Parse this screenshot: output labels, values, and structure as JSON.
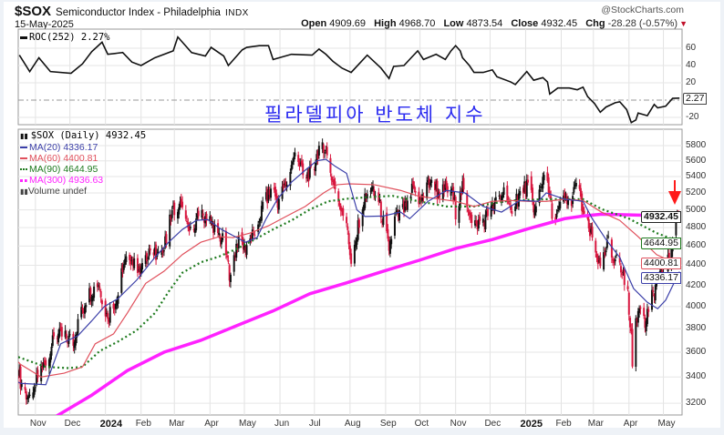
{
  "header": {
    "symbol": "$SOX",
    "name": "Semiconductor Index - Philadelphia",
    "exchange": "INDX",
    "date": "15-May-2025",
    "copyright": "@StockCharts.com",
    "open_label": "Open",
    "open": "4909.69",
    "high_label": "High",
    "high": "4968.70",
    "low_label": "Low",
    "low": "4873.54",
    "close_label": "Close",
    "close": "4932.45",
    "chg_label": "Chg",
    "chg": "-28.28 (-0.57%)",
    "chg_arrow": "▼"
  },
  "annotation": {
    "korean_title": "필라델피아 반도체 지수",
    "arrow_color": "#ff1a1a"
  },
  "colors": {
    "up": "#111111",
    "down": "#d8173f",
    "ma20": "#3b3fa8",
    "ma60": "#e0505c",
    "ma90": "#1e7a1e",
    "ma300": "#ff22ff",
    "roc": "#111111"
  },
  "chart_data": [
    {
      "type": "line",
      "title": "ROC(252)",
      "legend": {
        "label": "ROC(252) 2.27%",
        "placement": "top-left"
      },
      "last_value": "2.27",
      "x_unit": "days since start_date",
      "start_date": "2023-10-17",
      "y_ticks": [
        "60",
        "40",
        "20",
        "-20"
      ],
      "y_tick_values": [
        60,
        40,
        20,
        -20
      ],
      "ylim": [
        -28,
        80
      ],
      "zero_line": true,
      "points": [
        [
          1,
          52
        ],
        [
          10,
          33
        ],
        [
          18,
          49
        ],
        [
          28,
          33
        ],
        [
          46,
          31
        ],
        [
          56,
          42
        ],
        [
          64,
          56
        ],
        [
          73,
          67
        ],
        [
          78,
          53
        ],
        [
          91,
          55
        ],
        [
          99,
          44
        ],
        [
          107,
          40
        ],
        [
          119,
          49
        ],
        [
          135,
          57
        ],
        [
          139,
          73
        ],
        [
          151,
          55
        ],
        [
          163,
          51
        ],
        [
          168,
          61
        ],
        [
          179,
          51
        ],
        [
          183,
          40
        ],
        [
          195,
          58
        ],
        [
          199,
          61
        ],
        [
          210,
          63
        ],
        [
          218,
          63
        ],
        [
          222,
          47
        ],
        [
          238,
          53
        ],
        [
          256,
          52
        ],
        [
          262,
          59
        ],
        [
          268,
          53
        ],
        [
          274,
          45
        ],
        [
          282,
          37
        ],
        [
          290,
          32
        ],
        [
          304,
          52
        ],
        [
          316,
          37
        ],
        [
          323,
          25
        ],
        [
          327,
          39
        ],
        [
          336,
          40
        ],
        [
          343,
          50
        ],
        [
          348,
          57
        ],
        [
          353,
          47
        ],
        [
          364,
          53
        ],
        [
          372,
          47
        ],
        [
          377,
          57
        ],
        [
          381,
          63
        ],
        [
          385,
          57
        ],
        [
          387,
          49
        ],
        [
          393,
          40
        ],
        [
          397,
          32
        ],
        [
          405,
          32
        ],
        [
          413,
          35
        ],
        [
          417,
          27
        ],
        [
          429,
          21
        ],
        [
          433,
          18
        ],
        [
          443,
          33
        ],
        [
          449,
          23
        ],
        [
          457,
          26
        ],
        [
          461,
          21
        ],
        [
          463,
          7
        ],
        [
          470,
          14
        ],
        [
          480,
          14
        ],
        [
          487,
          12
        ],
        [
          492,
          15
        ],
        [
          496,
          4
        ],
        [
          502,
          -4
        ],
        [
          507,
          -14
        ],
        [
          512,
          -8
        ],
        [
          520,
          -3
        ],
        [
          524,
          -2
        ],
        [
          530,
          -11
        ],
        [
          534,
          -26
        ],
        [
          538,
          -23
        ],
        [
          540,
          -15
        ],
        [
          548,
          -18
        ],
        [
          554,
          -5
        ],
        [
          557,
          -9
        ],
        [
          564,
          -7
        ],
        [
          570,
          2
        ],
        [
          576,
          2.27
        ]
      ]
    },
    {
      "type": "candlestick",
      "title": "$SOX (Daily)",
      "legend": [
        {
          "key": "price",
          "label": "$SOX (Daily) 4932.45"
        },
        {
          "key": "ma20",
          "label": "MA(20) 4336.17"
        },
        {
          "key": "ma60",
          "label": "MA(60) 4400.81"
        },
        {
          "key": "ma90",
          "label": "MA(90) 4644.95"
        },
        {
          "key": "ma300",
          "label": "MA(300) 4936.63"
        },
        {
          "key": "volume",
          "label": "Volume undef"
        }
      ],
      "last_values": {
        "price": "4932.45",
        "ma90": "4644.95",
        "ma60": "4400.81",
        "ma20": "4336.17"
      },
      "scale": "log",
      "ylim": [
        3080,
        6050
      ],
      "y_ticks": [
        "5800",
        "5600",
        "5400",
        "5200",
        "5000",
        "4800",
        "4600",
        "4400",
        "4200",
        "4000",
        "3800",
        "3600",
        "3400",
        "3200"
      ],
      "y_tick_values": [
        5800,
        5600,
        5400,
        5200,
        5000,
        4800,
        4600,
        4400,
        4200,
        4000,
        3800,
        3600,
        3400,
        3200
      ],
      "x_unit": "days since start_date",
      "start_date": "2023-10-17",
      "end_day": 576,
      "x_ticks": [
        {
          "date": "2023-11-01",
          "label": "Nov"
        },
        {
          "date": "2023-12-01",
          "label": "Dec"
        },
        {
          "date": "2024-01-01",
          "label": "2024",
          "year": true
        },
        {
          "date": "2024-02-01",
          "label": "Feb"
        },
        {
          "date": "2024-03-01",
          "label": "Mar"
        },
        {
          "date": "2024-04-01",
          "label": "Apr"
        },
        {
          "date": "2024-05-01",
          "label": "May"
        },
        {
          "date": "2024-06-01",
          "label": "Jun"
        },
        {
          "date": "2024-07-01",
          "label": "Jul"
        },
        {
          "date": "2024-08-01",
          "label": "Aug"
        },
        {
          "date": "2024-09-01",
          "label": "Sep"
        },
        {
          "date": "2024-10-01",
          "label": "Oct"
        },
        {
          "date": "2024-11-01",
          "label": "Nov"
        },
        {
          "date": "2024-12-01",
          "label": "Dec"
        },
        {
          "date": "2025-01-01",
          "label": "2025",
          "year": true
        },
        {
          "date": "2025-02-01",
          "label": "Feb"
        },
        {
          "date": "2025-03-01",
          "label": "Mar"
        },
        {
          "date": "2025-04-01",
          "label": "Apr"
        },
        {
          "date": "2025-05-01",
          "label": "May"
        }
      ],
      "close_path": [
        [
          0,
          3450
        ],
        [
          2,
          3360
        ],
        [
          12,
          3173
        ],
        [
          16,
          3380
        ],
        [
          25,
          3556
        ],
        [
          33,
          3755
        ],
        [
          48,
          3700
        ],
        [
          54,
          3915
        ],
        [
          61,
          4118
        ],
        [
          70,
          4220
        ],
        [
          77,
          3915
        ],
        [
          86,
          4060
        ],
        [
          91,
          4387
        ],
        [
          97,
          4508
        ],
        [
          105,
          4297
        ],
        [
          114,
          4574
        ],
        [
          123,
          4450
        ],
        [
          129,
          4670
        ],
        [
          133,
          4975
        ],
        [
          141,
          5050
        ],
        [
          147,
          4800
        ],
        [
          152,
          4700
        ],
        [
          157,
          4925
        ],
        [
          165,
          4930
        ],
        [
          171,
          4800
        ],
        [
          179,
          4640
        ],
        [
          184,
          4322
        ],
        [
          192,
          4700
        ],
        [
          197,
          4574
        ],
        [
          208,
          4800
        ],
        [
          213,
          5040
        ],
        [
          221,
          5255
        ],
        [
          226,
          5100
        ],
        [
          234,
          5330
        ],
        [
          242,
          5715
        ],
        [
          248,
          5411
        ],
        [
          256,
          5440
        ],
        [
          264,
          5890
        ],
        [
          268,
          5715
        ],
        [
          272,
          5440
        ],
        [
          276,
          5255
        ],
        [
          280,
          5100
        ],
        [
          287,
          4800
        ],
        [
          290,
          4387
        ],
        [
          294,
          4640
        ],
        [
          299,
          5040
        ],
        [
          307,
          5255
        ],
        [
          315,
          5040
        ],
        [
          323,
          4574
        ],
        [
          328,
          4900
        ],
        [
          339,
          5040
        ],
        [
          344,
          5300
        ],
        [
          349,
          5040
        ],
        [
          361,
          5411
        ],
        [
          365,
          5200
        ],
        [
          377,
          5255
        ],
        [
          381,
          4975
        ],
        [
          387,
          5255
        ],
        [
          397,
          4820
        ],
        [
          407,
          4900
        ],
        [
          423,
          5225
        ],
        [
          430,
          4900
        ],
        [
          434,
          5146
        ],
        [
          445,
          5330
        ],
        [
          450,
          4975
        ],
        [
          458,
          5440
        ],
        [
          463,
          5146
        ],
        [
          466,
          4820
        ],
        [
          474,
          5100
        ],
        [
          482,
          5130
        ],
        [
          487,
          5300
        ],
        [
          492,
          4975
        ],
        [
          498,
          4740
        ],
        [
          503,
          4574
        ],
        [
          507,
          4340
        ],
        [
          514,
          4640
        ],
        [
          518,
          4508
        ],
        [
          524,
          4387
        ],
        [
          530,
          4220
        ],
        [
          534,
          3755
        ],
        [
          535,
          3425
        ],
        [
          538,
          3915
        ],
        [
          542,
          4040
        ],
        [
          546,
          3830
        ],
        [
          550,
          4040
        ],
        [
          556,
          4220
        ],
        [
          561,
          4322
        ],
        [
          568,
          4478
        ],
        [
          570,
          4750
        ],
        [
          573,
          4932
        ],
        [
          576,
          4932.45
        ]
      ],
      "ma20": [
        [
          0,
          3360
        ],
        [
          2,
          3350
        ],
        [
          24,
          3340
        ],
        [
          37,
          3670
        ],
        [
          52,
          3740
        ],
        [
          64,
          3870
        ],
        [
          75,
          4000
        ],
        [
          87,
          4075
        ],
        [
          103,
          4250
        ],
        [
          119,
          4480
        ],
        [
          131,
          4640
        ],
        [
          143,
          4780
        ],
        [
          155,
          4880
        ],
        [
          165,
          4890
        ],
        [
          177,
          4780
        ],
        [
          189,
          4700
        ],
        [
          198,
          4640
        ],
        [
          208,
          4690
        ],
        [
          216,
          4900
        ],
        [
          226,
          5130
        ],
        [
          238,
          5330
        ],
        [
          250,
          5480
        ],
        [
          260,
          5600
        ],
        [
          268,
          5620
        ],
        [
          276,
          5530
        ],
        [
          286,
          5440
        ],
        [
          295,
          5000
        ],
        [
          302,
          4925
        ],
        [
          318,
          4930
        ],
        [
          333,
          4975
        ],
        [
          341,
          4900
        ],
        [
          357,
          5100
        ],
        [
          373,
          5230
        ],
        [
          389,
          5200
        ],
        [
          405,
          5040
        ],
        [
          421,
          4975
        ],
        [
          437,
          5110
        ],
        [
          453,
          5100
        ],
        [
          460,
          5200
        ],
        [
          476,
          5125
        ],
        [
          492,
          5100
        ],
        [
          500,
          4900
        ],
        [
          512,
          4670
        ],
        [
          524,
          4480
        ],
        [
          536,
          4170
        ],
        [
          548,
          4040
        ],
        [
          557,
          3980
        ],
        [
          564,
          4060
        ],
        [
          576,
          4336.17
        ]
      ],
      "ma60": [
        [
          0,
          3520
        ],
        [
          2,
          3500
        ],
        [
          20,
          3400
        ],
        [
          40,
          3430
        ],
        [
          56,
          3480
        ],
        [
          67,
          3670
        ],
        [
          83,
          3755
        ],
        [
          95,
          3940
        ],
        [
          111,
          4220
        ],
        [
          127,
          4340
        ],
        [
          143,
          4510
        ],
        [
          159,
          4640
        ],
        [
          175,
          4700
        ],
        [
          187,
          4690
        ],
        [
          202,
          4740
        ],
        [
          218,
          4820
        ],
        [
          234,
          4930
        ],
        [
          250,
          5040
        ],
        [
          266,
          5200
        ],
        [
          278,
          5300
        ],
        [
          288,
          5310
        ],
        [
          310,
          5300
        ],
        [
          333,
          5230
        ],
        [
          349,
          5160
        ],
        [
          365,
          5130
        ],
        [
          381,
          5100
        ],
        [
          397,
          5040
        ],
        [
          413,
          5100
        ],
        [
          429,
          5110
        ],
        [
          445,
          5100
        ],
        [
          460,
          5100
        ],
        [
          476,
          5125
        ],
        [
          492,
          5110
        ],
        [
          508,
          4975
        ],
        [
          524,
          4880
        ],
        [
          540,
          4700
        ],
        [
          556,
          4510
        ],
        [
          576,
          4400.81
        ]
      ],
      "ma90": [
        [
          0,
          3560
        ],
        [
          24,
          3480
        ],
        [
          44,
          3470
        ],
        [
          56,
          3480
        ],
        [
          71,
          3610
        ],
        [
          87,
          3690
        ],
        [
          103,
          3785
        ],
        [
          119,
          3940
        ],
        [
          131,
          4140
        ],
        [
          143,
          4325
        ],
        [
          159,
          4430
        ],
        [
          175,
          4490
        ],
        [
          191,
          4574
        ],
        [
          206,
          4670
        ],
        [
          222,
          4780
        ],
        [
          238,
          4880
        ],
        [
          254,
          5005
        ],
        [
          270,
          5100
        ],
        [
          286,
          5130
        ],
        [
          302,
          5146
        ],
        [
          326,
          5165
        ],
        [
          349,
          5100
        ],
        [
          373,
          5040
        ],
        [
          397,
          5040
        ],
        [
          429,
          5110
        ],
        [
          460,
          5125
        ],
        [
          492,
          5125
        ],
        [
          508,
          5010
        ],
        [
          532,
          4900
        ],
        [
          556,
          4740
        ],
        [
          576,
          4644.95
        ]
      ],
      "ma300": [
        [
          32,
          3100
        ],
        [
          64,
          3260
        ],
        [
          95,
          3450
        ],
        [
          127,
          3600
        ],
        [
          159,
          3700
        ],
        [
          191,
          3830
        ],
        [
          222,
          3960
        ],
        [
          254,
          4120
        ],
        [
          286,
          4225
        ],
        [
          318,
          4340
        ],
        [
          349,
          4450
        ],
        [
          381,
          4574
        ],
        [
          413,
          4670
        ],
        [
          445,
          4790
        ],
        [
          476,
          4900
        ],
        [
          492,
          4930
        ],
        [
          508,
          4950
        ],
        [
          540,
          4940
        ],
        [
          576,
          4936.63
        ]
      ]
    }
  ]
}
